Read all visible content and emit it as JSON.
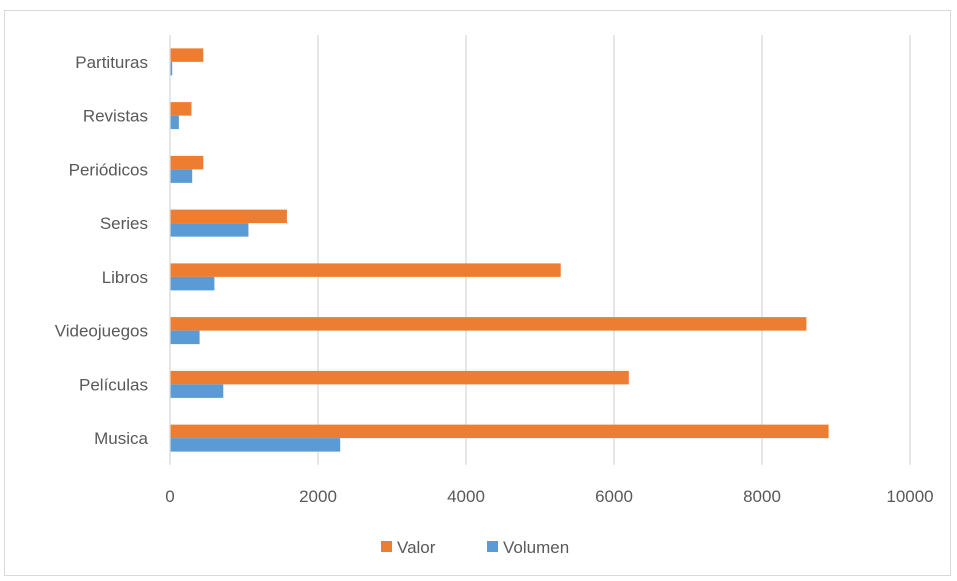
{
  "chart_data": {
    "type": "bar",
    "orientation": "horizontal",
    "categories": [
      "Musica",
      "Películas",
      "Videojuegos",
      "Libros",
      "Series",
      "Periódicos",
      "Revistas",
      "Partituras"
    ],
    "series": [
      {
        "name": "Valor",
        "color": "#ed7d31",
        "values": [
          8900,
          6200,
          8600,
          5280,
          1580,
          450,
          290,
          450
        ]
      },
      {
        "name": "Volumen",
        "color": "#5b9bd5",
        "values": [
          2300,
          720,
          400,
          600,
          1060,
          300,
          120,
          30
        ]
      }
    ],
    "xlim": [
      0,
      10000
    ],
    "x_ticks": [
      "0",
      "2000",
      "4000",
      "6000",
      "8000",
      "10000"
    ],
    "x_tick_values": [
      0,
      2000,
      4000,
      6000,
      8000,
      10000
    ],
    "grid": "vertical",
    "legend": "bottom"
  }
}
